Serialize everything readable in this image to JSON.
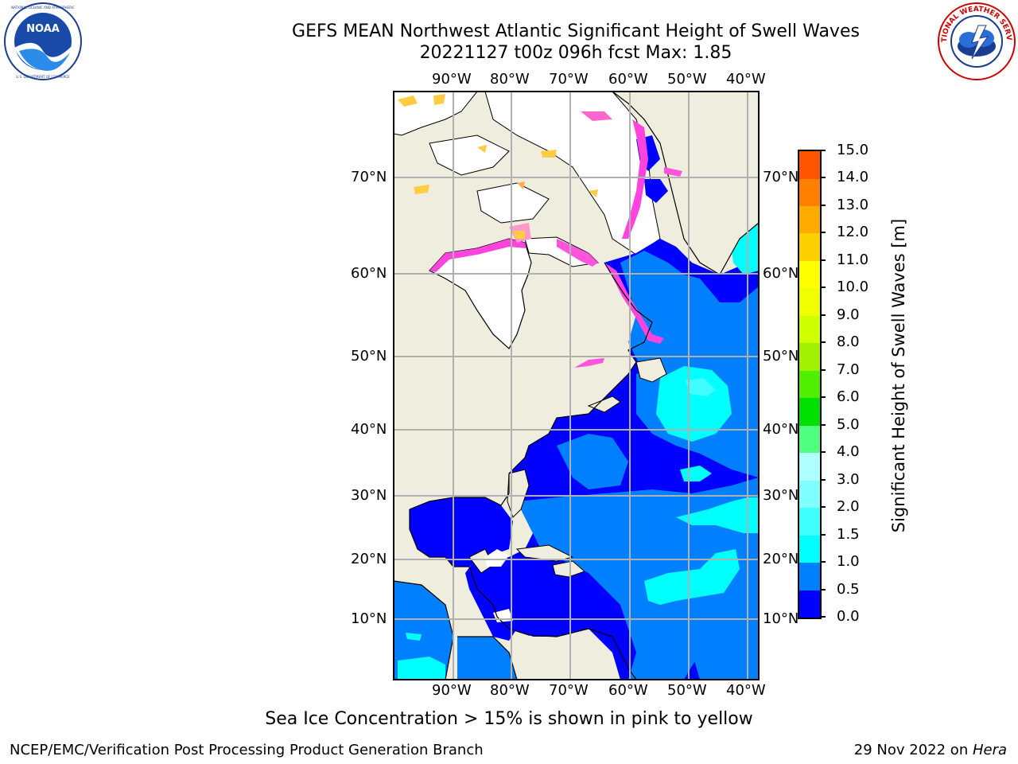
{
  "title": {
    "line1": "GEFS MEAN Northwest Atlantic Significant Height of Swell Waves",
    "line2": "20221127 t00z 096h fcst   Max: 1.85"
  },
  "logos": {
    "left": "NOAA",
    "left_ring_text": "NATIONAL OCEANIC AND ATMOSPHERIC ADMINISTRATION · U.S. DEPARTMENT OF COMMERCE",
    "right_ring_text": "NATIONAL WEATHER SERVICE"
  },
  "map": {
    "lon_labels": [
      "90°W",
      "80°W",
      "70°W",
      "60°W",
      "50°W",
      "40°W"
    ],
    "lat_labels": [
      "70°N",
      "60°N",
      "50°N",
      "40°N",
      "30°N",
      "20°N",
      "10°N"
    ],
    "colors": {
      "land": "#efedde",
      "frame": "#000000",
      "grid": "#b0b0b0",
      "coast": "#000000",
      "ice_unmasked": "#ffffff"
    }
  },
  "colorbar": {
    "label": "Significant Height of Swell Waves [m]",
    "ticks": [
      "15.0",
      "14.0",
      "13.0",
      "12.0",
      "11.0",
      "10.0",
      "9.0",
      "8.0",
      "7.0",
      "6.0",
      "5.0",
      "4.0",
      "3.0",
      "2.0",
      "1.5",
      "1.0",
      "0.5",
      "0.0"
    ],
    "colors_bottom_to_top": [
      "#0000ff",
      "#0080ff",
      "#00ffff",
      "#40ffff",
      "#80ffff",
      "#b0ffff",
      "#50ff80",
      "#00e000",
      "#50ee00",
      "#a0f000",
      "#d0ff00",
      "#f0ff00",
      "#ffff00",
      "#ffd000",
      "#ffaa00",
      "#ff8000",
      "#ff5500",
      "#ff2a00",
      "#ff0000"
    ]
  },
  "ice_note": "Sea Ice Concentration > 15% is shown in pink to yellow",
  "footer": {
    "left": "NCEP/EMC/Verification Post Processing Product Generation Branch",
    "right_date": "29 Nov 2022 on ",
    "right_host": "Hera"
  }
}
